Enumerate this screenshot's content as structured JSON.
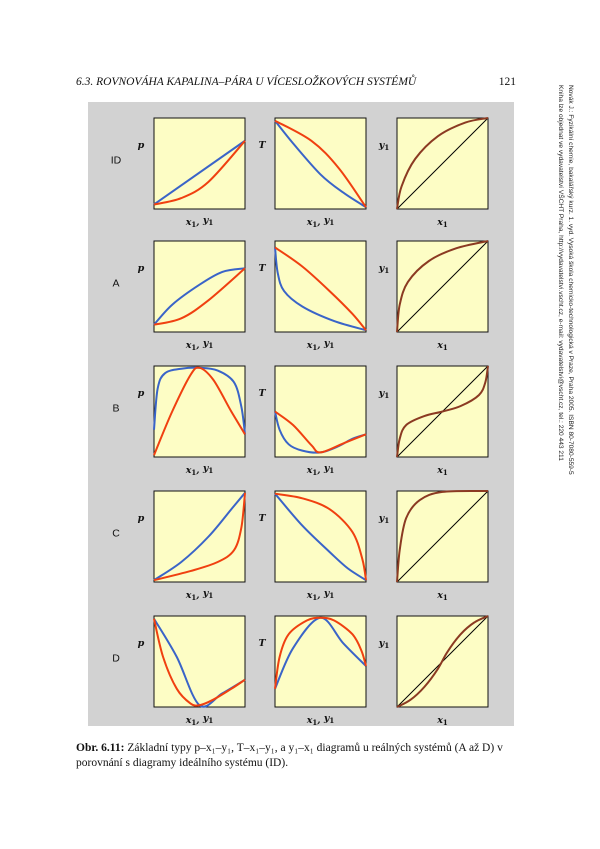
{
  "header": {
    "chapter": "6.3.  ROVNOVÁHA KAPALINA–PÁRA U VÍCESLOŽKOVÝCH SYSTÉMŮ",
    "page_number": "121"
  },
  "sidenote": {
    "line1": "Novák J.: Fyzikální chemie, bakalářský kurz. 1. vyd. Vysoká škola chemicko-technologická v Praze, Praha 2005. ISBN 80-7080-559-5",
    "line2": "Kniha lze objednat ve vydavatelství VŠCHT Praha, http://vydavatelstvi.vscht.cz, e-mail: vydavatelstvi@vscht.cz, tel.: 220 443 211"
  },
  "figure": {
    "colors": {
      "panel_fill": "#fdfdc5",
      "liquid": "#3a64c8",
      "vapor": "#f04010",
      "equilibrium": "#8b3a22",
      "diagonal": "#000000",
      "background": "#d2d2d2"
    },
    "column_titles": {
      "p_label": "p",
      "T_label": "T",
      "y1_label": "y",
      "y1_sub": "1",
      "x_label": "x",
      "x_sub": "1",
      "y_label": "y",
      "y_sub": "1"
    },
    "rows": [
      {
        "label": "ID",
        "pxy": {
          "blue": [
            [
              0,
              0.05
            ],
            [
              1,
              0.75
            ]
          ],
          "red": [
            [
              0,
              0.05
            ],
            [
              0.3,
              0.12
            ],
            [
              0.6,
              0.3
            ],
            [
              1,
              0.75
            ]
          ]
        },
        "Txy": {
          "blue": [
            [
              0,
              0.97
            ],
            [
              0.2,
              0.72
            ],
            [
              0.5,
              0.38
            ],
            [
              0.75,
              0.18
            ],
            [
              1,
              0.02
            ]
          ],
          "red": [
            [
              0,
              0.97
            ],
            [
              0.4,
              0.75
            ],
            [
              0.7,
              0.45
            ],
            [
              1,
              0.02
            ]
          ]
        },
        "yx": [
          [
            0,
            0
          ],
          [
            0.05,
            0.25
          ],
          [
            0.2,
            0.55
          ],
          [
            0.45,
            0.8
          ],
          [
            0.75,
            0.95
          ],
          [
            1,
            1
          ]
        ]
      },
      {
        "label": "A",
        "pxy": {
          "blue": [
            [
              0,
              0.08
            ],
            [
              0.2,
              0.3
            ],
            [
              0.5,
              0.52
            ],
            [
              0.75,
              0.66
            ],
            [
              1,
              0.7
            ]
          ],
          "red": [
            [
              0,
              0.08
            ],
            [
              0.3,
              0.15
            ],
            [
              0.6,
              0.35
            ],
            [
              1,
              0.7
            ]
          ]
        },
        "Txy": {
          "blue": [
            [
              0,
              0.93
            ],
            [
              0.03,
              0.65
            ],
            [
              0.1,
              0.45
            ],
            [
              0.3,
              0.28
            ],
            [
              0.65,
              0.12
            ],
            [
              1,
              0.02
            ]
          ],
          "red": [
            [
              0,
              0.93
            ],
            [
              0.3,
              0.72
            ],
            [
              0.6,
              0.45
            ],
            [
              0.85,
              0.2
            ],
            [
              1,
              0.02
            ]
          ]
        },
        "yx": [
          [
            0,
            0
          ],
          [
            0.03,
            0.3
          ],
          [
            0.12,
            0.55
          ],
          [
            0.35,
            0.78
          ],
          [
            0.65,
            0.92
          ],
          [
            1,
            1
          ]
        ]
      },
      {
        "label": "B",
        "pxy": {
          "blue": [
            [
              0,
              0.3
            ],
            [
              0.04,
              0.75
            ],
            [
              0.12,
              0.92
            ],
            [
              0.3,
              0.97
            ],
            [
              0.5,
              0.98
            ],
            [
              0.7,
              0.95
            ],
            [
              0.88,
              0.82
            ],
            [
              0.96,
              0.55
            ],
            [
              1,
              0.25
            ]
          ],
          "red": [
            [
              0,
              0.02
            ],
            [
              0.2,
              0.5
            ],
            [
              0.4,
              0.9
            ],
            [
              0.5,
              0.98
            ],
            [
              0.65,
              0.85
            ],
            [
              0.85,
              0.5
            ],
            [
              1,
              0.25
            ]
          ]
        },
        "Txy": {
          "blue": [
            [
              0,
              0.5
            ],
            [
              0.05,
              0.3
            ],
            [
              0.15,
              0.14
            ],
            [
              0.3,
              0.07
            ],
            [
              0.5,
              0.05
            ],
            [
              0.7,
              0.12
            ],
            [
              0.85,
              0.2
            ],
            [
              1,
              0.25
            ]
          ],
          "red": [
            [
              0,
              0.5
            ],
            [
              0.2,
              0.35
            ],
            [
              0.4,
              0.13
            ],
            [
              0.5,
              0.05
            ],
            [
              0.75,
              0.15
            ],
            [
              1,
              0.25
            ]
          ]
        },
        "yx": [
          [
            0,
            0
          ],
          [
            0.03,
            0.2
          ],
          [
            0.1,
            0.35
          ],
          [
            0.3,
            0.45
          ],
          [
            0.5,
            0.5
          ],
          [
            0.7,
            0.56
          ],
          [
            0.9,
            0.68
          ],
          [
            0.97,
            0.82
          ],
          [
            1,
            1
          ]
        ]
      },
      {
        "label": "C",
        "pxy": {
          "blue": [
            [
              0,
              0.02
            ],
            [
              0.3,
              0.22
            ],
            [
              0.6,
              0.5
            ],
            [
              0.85,
              0.8
            ],
            [
              1,
              0.98
            ]
          ],
          "red": [
            [
              0,
              0.02
            ],
            [
              0.4,
              0.12
            ],
            [
              0.7,
              0.22
            ],
            [
              0.88,
              0.35
            ],
            [
              0.96,
              0.6
            ],
            [
              1,
              0.98
            ]
          ]
        },
        "Txy": {
          "blue": [
            [
              0,
              0.97
            ],
            [
              0.3,
              0.62
            ],
            [
              0.6,
              0.33
            ],
            [
              0.8,
              0.15
            ],
            [
              1,
              0.02
            ]
          ],
          "red": [
            [
              0,
              0.97
            ],
            [
              0.3,
              0.92
            ],
            [
              0.6,
              0.8
            ],
            [
              0.85,
              0.55
            ],
            [
              0.96,
              0.25
            ],
            [
              1,
              0.02
            ]
          ]
        },
        "yx": [
          [
            0,
            0
          ],
          [
            0.03,
            0.35
          ],
          [
            0.1,
            0.7
          ],
          [
            0.25,
            0.9
          ],
          [
            0.5,
            0.99
          ],
          [
            1,
            1
          ]
        ]
      },
      {
        "label": "D",
        "pxy": {
          "blue": [
            [
              0,
              0.97
            ],
            [
              0.25,
              0.55
            ],
            [
              0.5,
              0.02
            ],
            [
              0.75,
              0.15
            ],
            [
              1,
              0.3
            ]
          ],
          "red": [
            [
              0,
              0.97
            ],
            [
              0.1,
              0.55
            ],
            [
              0.25,
              0.2
            ],
            [
              0.4,
              0.04
            ],
            [
              0.5,
              0.02
            ],
            [
              0.65,
              0.08
            ],
            [
              0.85,
              0.2
            ],
            [
              1,
              0.3
            ]
          ]
        },
        "Txy": {
          "blue": [
            [
              0,
              0.2
            ],
            [
              0.2,
              0.65
            ],
            [
              0.5,
              0.98
            ],
            [
              0.75,
              0.7
            ],
            [
              1,
              0.45
            ]
          ],
          "red": [
            [
              0,
              0.2
            ],
            [
              0.05,
              0.55
            ],
            [
              0.15,
              0.8
            ],
            [
              0.35,
              0.95
            ],
            [
              0.5,
              0.98
            ],
            [
              0.65,
              0.95
            ],
            [
              0.85,
              0.8
            ],
            [
              0.95,
              0.62
            ],
            [
              1,
              0.45
            ]
          ]
        },
        "yx": [
          [
            0,
            0
          ],
          [
            0.15,
            0.08
          ],
          [
            0.3,
            0.22
          ],
          [
            0.45,
            0.42
          ],
          [
            0.55,
            0.6
          ],
          [
            0.7,
            0.8
          ],
          [
            0.85,
            0.93
          ],
          [
            1,
            1
          ]
        ]
      }
    ]
  },
  "caption": {
    "label": "Obr. 6.11:",
    "text": " Základní typy p–x₁–y₁, T–x₁–y₁, a y₁–x₁ diagramů u reálných systémů (A až D) v porovnání s diagramy ideálního systému (ID)."
  }
}
